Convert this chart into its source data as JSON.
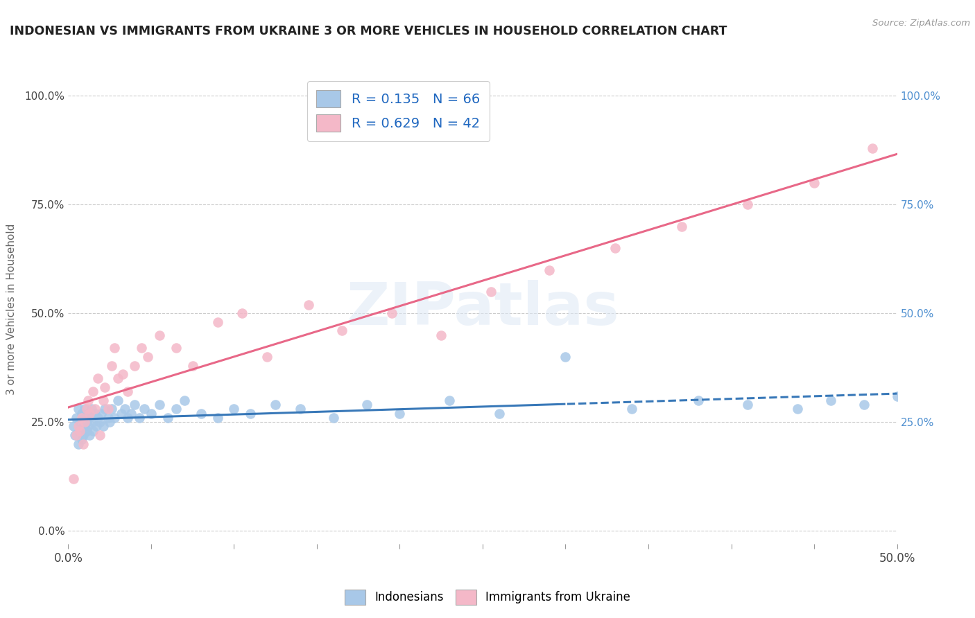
{
  "title": "INDONESIAN VS IMMIGRANTS FROM UKRAINE 3 OR MORE VEHICLES IN HOUSEHOLD CORRELATION CHART",
  "source_text": "Source: ZipAtlas.com",
  "ylabel": "3 or more Vehicles in Household",
  "xlim": [
    0.0,
    0.5
  ],
  "ylim": [
    -0.03,
    1.05
  ],
  "ytick_labels": [
    "0.0%",
    "25.0%",
    "50.0%",
    "75.0%",
    "100.0%"
  ],
  "ytick_values": [
    0.0,
    0.25,
    0.5,
    0.75,
    1.0
  ],
  "right_ytick_labels": [
    "25.0%",
    "50.0%",
    "75.0%",
    "100.0%"
  ],
  "right_ytick_values": [
    0.25,
    0.5,
    0.75,
    1.0
  ],
  "r_indonesian": 0.135,
  "n_indonesian": 66,
  "r_ukraine": 0.629,
  "n_ukraine": 42,
  "watermark": "ZIPatlas",
  "blue_scatter_color": "#a8c8e8",
  "pink_scatter_color": "#f4b8c8",
  "blue_line_color": "#3878b8",
  "pink_line_color": "#e86888",
  "right_axis_color": "#5090d0",
  "legend_text_color": "#2068c0",
  "indo_x": [
    0.003,
    0.004,
    0.005,
    0.006,
    0.006,
    0.007,
    0.007,
    0.008,
    0.008,
    0.009,
    0.009,
    0.01,
    0.01,
    0.01,
    0.011,
    0.011,
    0.012,
    0.012,
    0.013,
    0.013,
    0.014,
    0.015,
    0.015,
    0.016,
    0.017,
    0.018,
    0.019,
    0.02,
    0.021,
    0.022,
    0.024,
    0.025,
    0.026,
    0.028,
    0.03,
    0.032,
    0.034,
    0.036,
    0.038,
    0.04,
    0.043,
    0.046,
    0.05,
    0.055,
    0.06,
    0.065,
    0.07,
    0.08,
    0.09,
    0.1,
    0.11,
    0.125,
    0.14,
    0.16,
    0.18,
    0.2,
    0.23,
    0.26,
    0.3,
    0.34,
    0.38,
    0.41,
    0.44,
    0.46,
    0.48,
    0.5
  ],
  "indo_y": [
    0.24,
    0.22,
    0.26,
    0.2,
    0.28,
    0.23,
    0.25,
    0.21,
    0.27,
    0.24,
    0.22,
    0.26,
    0.24,
    0.28,
    0.25,
    0.23,
    0.27,
    0.24,
    0.26,
    0.22,
    0.28,
    0.25,
    0.23,
    0.27,
    0.24,
    0.26,
    0.25,
    0.27,
    0.24,
    0.28,
    0.26,
    0.25,
    0.28,
    0.26,
    0.3,
    0.27,
    0.28,
    0.26,
    0.27,
    0.29,
    0.26,
    0.28,
    0.27,
    0.29,
    0.26,
    0.28,
    0.3,
    0.27,
    0.26,
    0.28,
    0.27,
    0.29,
    0.28,
    0.26,
    0.29,
    0.27,
    0.3,
    0.27,
    0.4,
    0.28,
    0.3,
    0.29,
    0.28,
    0.3,
    0.29,
    0.31
  ],
  "ukr_x": [
    0.003,
    0.005,
    0.006,
    0.007,
    0.008,
    0.009,
    0.01,
    0.011,
    0.012,
    0.013,
    0.015,
    0.016,
    0.018,
    0.019,
    0.021,
    0.022,
    0.024,
    0.026,
    0.028,
    0.03,
    0.033,
    0.036,
    0.04,
    0.044,
    0.048,
    0.055,
    0.065,
    0.075,
    0.09,
    0.105,
    0.12,
    0.145,
    0.165,
    0.195,
    0.225,
    0.255,
    0.29,
    0.33,
    0.37,
    0.41,
    0.45,
    0.485
  ],
  "ukr_y": [
    0.12,
    0.22,
    0.24,
    0.23,
    0.26,
    0.2,
    0.25,
    0.28,
    0.3,
    0.27,
    0.32,
    0.28,
    0.35,
    0.22,
    0.3,
    0.33,
    0.28,
    0.38,
    0.42,
    0.35,
    0.36,
    0.32,
    0.38,
    0.42,
    0.4,
    0.45,
    0.42,
    0.38,
    0.48,
    0.5,
    0.4,
    0.52,
    0.46,
    0.5,
    0.45,
    0.55,
    0.6,
    0.65,
    0.7,
    0.75,
    0.8,
    0.88
  ]
}
